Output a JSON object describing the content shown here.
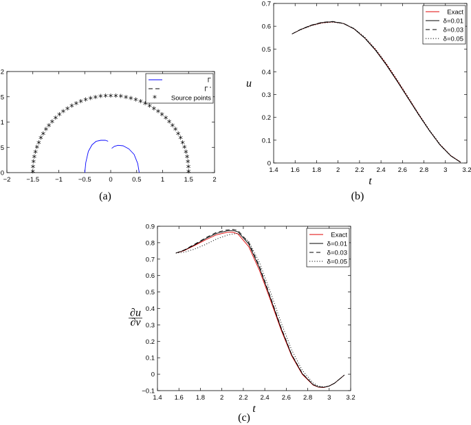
{
  "chart_data": [
    {
      "id": "a",
      "type": "scatter",
      "caption": "(a)",
      "xlim": [
        -2,
        2
      ],
      "ylim": [
        0,
        2
      ],
      "xticks": [
        "−2",
        "−1.5",
        "−1",
        "−0.5",
        "0",
        "0.5",
        "1",
        "1.5",
        "2"
      ],
      "yticks": [
        "0",
        "0.5",
        "1",
        "1.5",
        "2"
      ],
      "xlabel": "",
      "ylabel": "",
      "grid": false,
      "legend_position": "top-right",
      "legend": [
        "Γ",
        "Γ '",
        "Source points"
      ],
      "series": [
        {
          "name": "Γ",
          "style": "solid",
          "color": "#0000ff",
          "x": [
            -0.5,
            -0.48,
            -0.43,
            -0.36,
            -0.28,
            -0.19,
            -0.1,
            -0.05
          ],
          "y": [
            0,
            0.2,
            0.42,
            0.55,
            0.62,
            0.64,
            0.64,
            0.62
          ]
        },
        {
          "name": "Γ",
          "style": "solid",
          "color": "#0000ff",
          "x": [
            0.02,
            0.07,
            0.14,
            0.24,
            0.35,
            0.45,
            0.52,
            0.55
          ],
          "y": [
            0.48,
            0.52,
            0.54,
            0.53,
            0.47,
            0.36,
            0.18,
            0
          ]
        },
        {
          "name": "Source points",
          "style": "marker",
          "color": "#000000",
          "center": [
            0,
            0
          ],
          "radius": 1.5,
          "count": 49
        }
      ]
    },
    {
      "id": "b",
      "type": "line",
      "caption": "(b)",
      "xlim": [
        1.4,
        3.2
      ],
      "ylim": [
        0,
        0.7
      ],
      "xticks": [
        "1.4",
        "1.6",
        "1.8",
        "2",
        "2.2",
        "2.4",
        "2.6",
        "2.8",
        "3",
        "3.2"
      ],
      "yticks": [
        "0",
        "0.1",
        "0.2",
        "0.3",
        "0.4",
        "0.5",
        "0.6",
        "0.7"
      ],
      "xlabel": "t",
      "ylabel": "u",
      "grid": false,
      "legend_position": "top-right",
      "legend": [
        "Exact",
        "δ=0.01",
        "δ=0.03",
        "δ=0.05"
      ],
      "x": [
        1.5708,
        1.65,
        1.75,
        1.85,
        1.95,
        2.05,
        2.15,
        2.25,
        2.35,
        2.45,
        2.55,
        2.65,
        2.75,
        2.85,
        2.95,
        3.05,
        3.1416
      ],
      "series": [
        {
          "name": "Exact",
          "style": "solid",
          "color": "#e00000",
          "values": [
            0.566,
            0.585,
            0.603,
            0.615,
            0.619,
            0.612,
            0.588,
            0.548,
            0.496,
            0.433,
            0.362,
            0.288,
            0.214,
            0.143,
            0.08,
            0.032,
            0.004
          ]
        },
        {
          "name": "δ=0.01",
          "style": "solid",
          "color": "#000000",
          "values": [
            0.566,
            0.585,
            0.604,
            0.616,
            0.62,
            0.612,
            0.588,
            0.547,
            0.494,
            0.43,
            0.359,
            0.286,
            0.212,
            0.142,
            0.079,
            0.031,
            0.003
          ]
        },
        {
          "name": "δ=0.03",
          "style": "dashed",
          "color": "#000000",
          "values": [
            0.566,
            0.586,
            0.605,
            0.617,
            0.621,
            0.613,
            0.589,
            0.548,
            0.495,
            0.431,
            0.36,
            0.286,
            0.212,
            0.142,
            0.079,
            0.031,
            0.003
          ]
        },
        {
          "name": "δ=0.05",
          "style": "dotted",
          "color": "#000000",
          "values": [
            0.566,
            0.584,
            0.602,
            0.614,
            0.618,
            0.612,
            0.59,
            0.552,
            0.5,
            0.437,
            0.366,
            0.292,
            0.217,
            0.146,
            0.082,
            0.033,
            0.004
          ]
        }
      ]
    },
    {
      "id": "c",
      "type": "line",
      "caption": "(c)",
      "xlim": [
        1.4,
        3.2
      ],
      "ylim": [
        -0.1,
        0.9
      ],
      "xticks": [
        "1.4",
        "1.6",
        "1.8",
        "2",
        "2.2",
        "2.4",
        "2.6",
        "2.8",
        "3",
        "3.2"
      ],
      "yticks": [
        "−0.1",
        "0",
        "0.1",
        "0.2",
        "0.3",
        "0.4",
        "0.5",
        "0.6",
        "0.7",
        "0.8",
        "0.9"
      ],
      "xlabel": "t",
      "ylabel": "∂u/∂ν",
      "grid": false,
      "legend_position": "top-right",
      "legend": [
        "Exact",
        "δ=0.01",
        "δ=0.03",
        "δ=0.05"
      ],
      "x": [
        1.5708,
        1.65,
        1.75,
        1.85,
        1.95,
        2.05,
        2.1,
        2.15,
        2.25,
        2.35,
        2.45,
        2.55,
        2.65,
        2.75,
        2.85,
        2.9,
        2.95,
        3.0,
        3.05,
        3.1416
      ],
      "series": [
        {
          "name": "Exact",
          "style": "solid",
          "color": "#e00000",
          "values": [
            0.737,
            0.752,
            0.784,
            0.818,
            0.848,
            0.863,
            0.864,
            0.853,
            0.776,
            0.632,
            0.455,
            0.273,
            0.112,
            -0.002,
            -0.066,
            -0.079,
            -0.081,
            -0.072,
            -0.055,
            -0.005
          ]
        },
        {
          "name": "δ=0.01",
          "style": "solid",
          "color": "#000000",
          "values": [
            0.737,
            0.754,
            0.788,
            0.825,
            0.857,
            0.872,
            0.874,
            0.866,
            0.792,
            0.648,
            0.468,
            0.282,
            0.118,
            0.002,
            -0.064,
            -0.078,
            -0.08,
            -0.072,
            -0.055,
            -0.005
          ]
        },
        {
          "name": "δ=0.03",
          "style": "dashed",
          "color": "#000000",
          "values": [
            0.737,
            0.756,
            0.792,
            0.83,
            0.863,
            0.878,
            0.881,
            0.874,
            0.801,
            0.657,
            0.475,
            0.287,
            0.121,
            0.004,
            -0.063,
            -0.077,
            -0.08,
            -0.072,
            -0.055,
            -0.005
          ]
        },
        {
          "name": "δ=0.05",
          "style": "dotted",
          "color": "#000000",
          "values": [
            0.737,
            0.742,
            0.762,
            0.79,
            0.822,
            0.846,
            0.853,
            0.856,
            0.808,
            0.68,
            0.505,
            0.318,
            0.148,
            0.022,
            -0.054,
            -0.072,
            -0.078,
            -0.071,
            -0.055,
            -0.005
          ]
        }
      ]
    }
  ]
}
